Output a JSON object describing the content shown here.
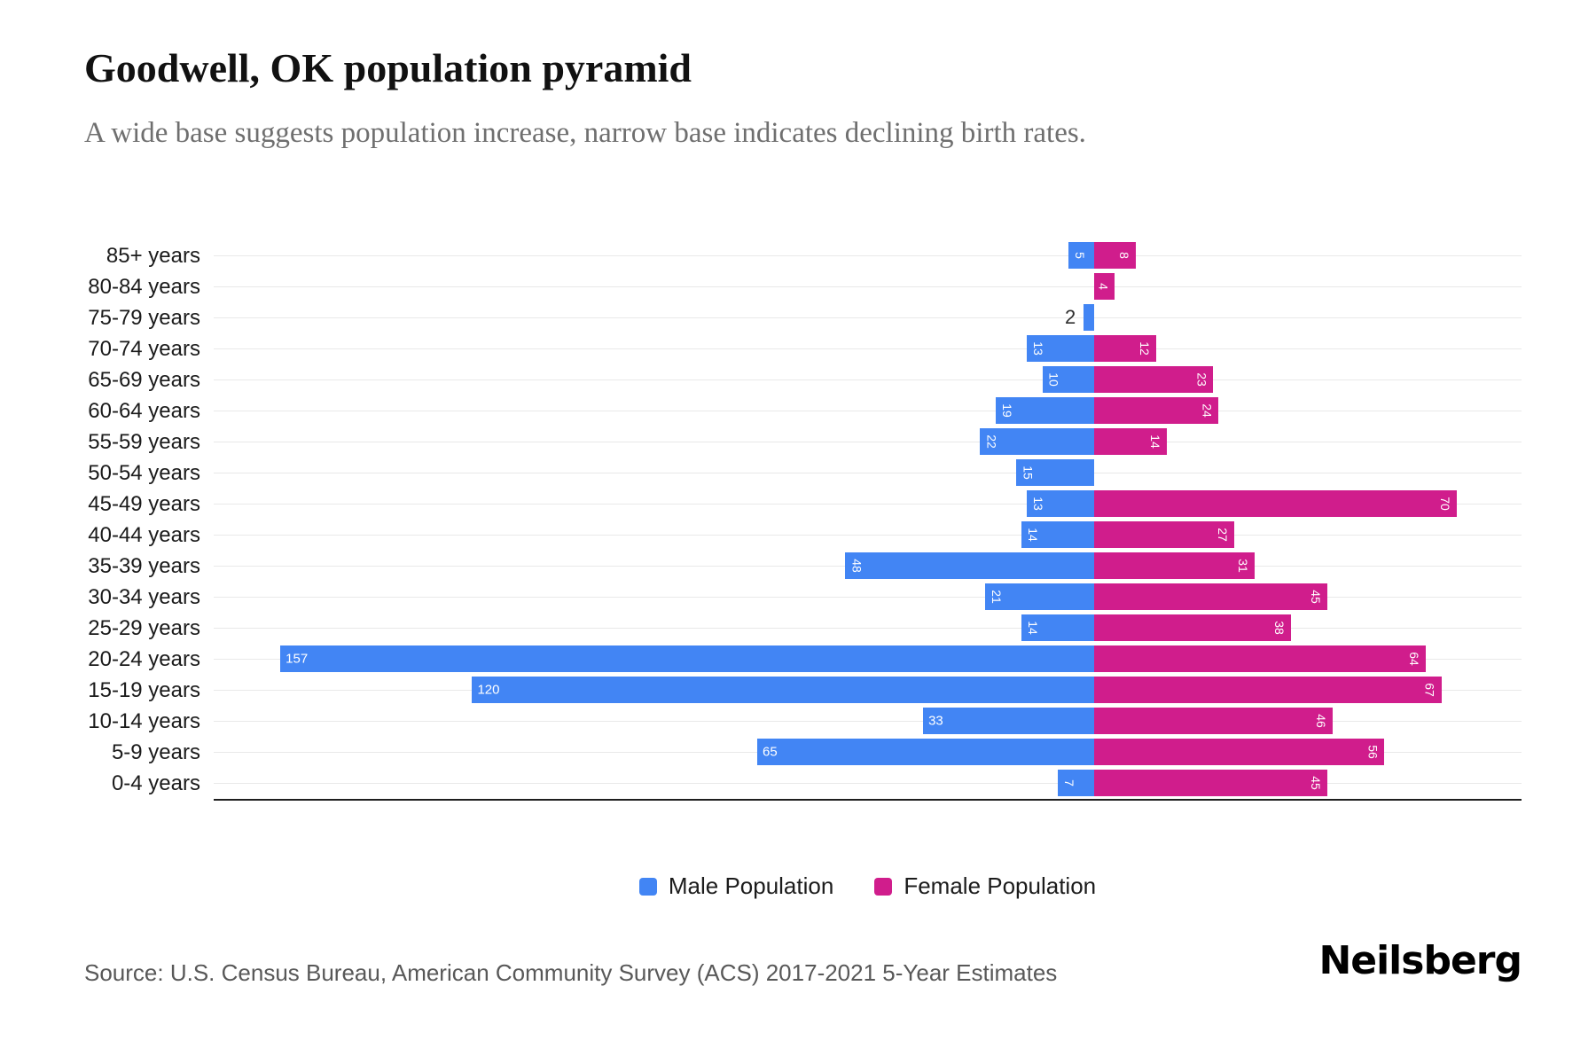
{
  "header": {
    "title": "Goodwell, OK population pyramid",
    "subtitle": "A wide base suggests population increase, narrow base indicates declining birth rates."
  },
  "legend": {
    "items": [
      {
        "label": "Male Population",
        "color": "#4285f4"
      },
      {
        "label": "Female Population",
        "color": "#d01d8c"
      }
    ]
  },
  "footer": {
    "source": "Source: U.S. Census Bureau, American Community Survey (ACS) 2017-2021 5-Year Estimates",
    "brand": "Neilsberg"
  },
  "colors": {
    "male": "#4285f4",
    "female": "#d01d8c",
    "gridline": "#e9e9e9",
    "axis_line": "#1f1f1f",
    "title": "#111111",
    "subtitle": "#6f6f6f",
    "source": "#585858",
    "bar_label": "#ffffff",
    "outside_label": "#2e2e2e"
  },
  "chart_data": {
    "type": "bar",
    "variant": "population-pyramid",
    "title": "Goodwell, OK population pyramid",
    "xlabel": "",
    "ylabel": "",
    "gridlines": true,
    "x_axis_ticks_visible": false,
    "legend_position": "bottom-center",
    "categories": [
      "85+ years",
      "80-84 years",
      "75-79 years",
      "70-74 years",
      "65-69 years",
      "60-64 years",
      "55-59 years",
      "50-54 years",
      "45-49 years",
      "40-44 years",
      "35-39 years",
      "30-34 years",
      "25-29 years",
      "20-24 years",
      "15-19 years",
      "10-14 years",
      "5-9 years",
      "0-4 years"
    ],
    "series": [
      {
        "name": "Male Population",
        "side": "left",
        "color": "#4285f4",
        "values": [
          5,
          0,
          2,
          13,
          10,
          19,
          22,
          15,
          13,
          14,
          48,
          21,
          14,
          157,
          120,
          33,
          65,
          7
        ],
        "label_rotated": [
          true,
          false,
          false,
          true,
          true,
          true,
          true,
          true,
          true,
          true,
          true,
          true,
          true,
          false,
          false,
          false,
          false,
          true
        ],
        "label_outside": [
          false,
          false,
          true,
          false,
          false,
          false,
          false,
          false,
          false,
          false,
          false,
          false,
          false,
          false,
          false,
          false,
          false,
          false
        ]
      },
      {
        "name": "Female Population",
        "side": "right",
        "color": "#d01d8c",
        "values": [
          8,
          4,
          0,
          12,
          23,
          24,
          14,
          0,
          70,
          27,
          31,
          45,
          38,
          64,
          67,
          46,
          56,
          45
        ],
        "label_rotated": [
          true,
          true,
          false,
          true,
          true,
          true,
          true,
          false,
          true,
          true,
          true,
          true,
          true,
          true,
          true,
          true,
          true,
          true
        ],
        "label_outside": [
          false,
          false,
          false,
          false,
          false,
          false,
          false,
          false,
          false,
          false,
          false,
          false,
          false,
          false,
          false,
          false,
          false,
          false
        ]
      }
    ]
  }
}
